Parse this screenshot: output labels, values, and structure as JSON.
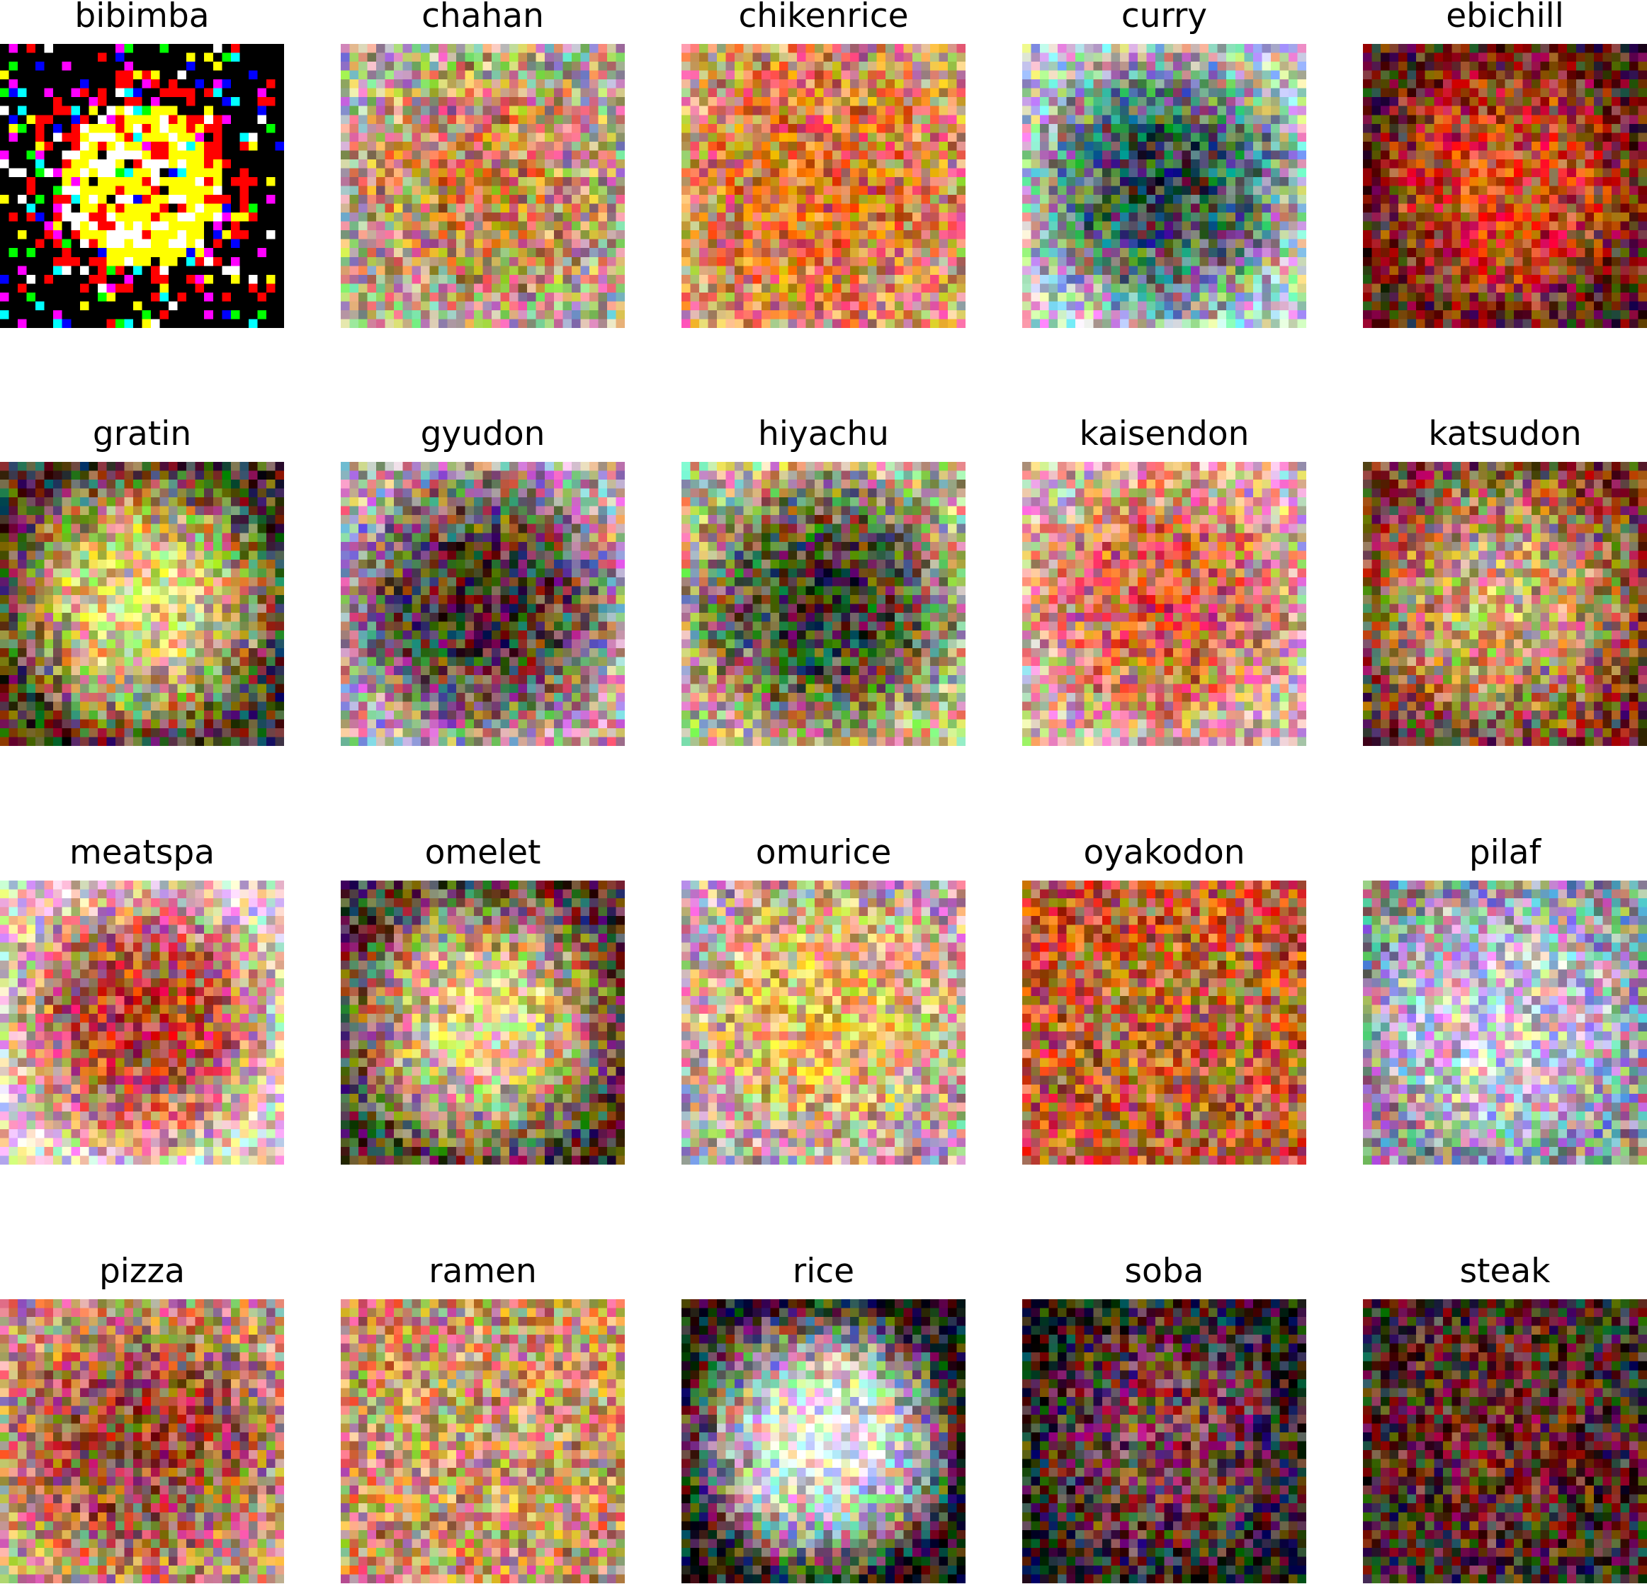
{
  "figure": {
    "columns": 5,
    "grid_resolution": 32,
    "panels": [
      {
        "label": "bibimba",
        "palette": "vivid",
        "tone": "bright-yellow-white center, red speckle, black background"
      },
      {
        "label": "chahan",
        "palette": "noisy",
        "tone": "mixed orange/green, pale ring, dark bottom edge"
      },
      {
        "label": "chikenrice",
        "palette": "noisy",
        "tone": "orange-red"
      },
      {
        "label": "curry",
        "palette": "noisy",
        "tone": "dark teal center, pale surround"
      },
      {
        "label": "ebichill",
        "palette": "noisy",
        "tone": "red-orange, dark edges"
      },
      {
        "label": "gratin",
        "palette": "noisy",
        "tone": "yellow-cream center, dark edges"
      },
      {
        "label": "gyudon",
        "palette": "noisy",
        "tone": "dark brown center, pale bottom"
      },
      {
        "label": "hiyachu",
        "palette": "noisy",
        "tone": "dark green/red center"
      },
      {
        "label": "kaisendon",
        "palette": "noisy",
        "tone": "orange-red center, pale edges"
      },
      {
        "label": "katsudon",
        "palette": "noisy",
        "tone": "brown ring, pale center"
      },
      {
        "label": "meatspa",
        "palette": "noisy",
        "tone": "red-brown center, pale edges"
      },
      {
        "label": "omelet",
        "palette": "noisy",
        "tone": "pale yellow center, dark corners"
      },
      {
        "label": "omurice",
        "palette": "noisy",
        "tone": "yellow-orange center"
      },
      {
        "label": "oyakodon",
        "palette": "noisy",
        "tone": "brown-orange ring"
      },
      {
        "label": "pilaf",
        "palette": "noisy",
        "tone": "pale lavender/teal"
      },
      {
        "label": "pizza",
        "palette": "noisy",
        "tone": "brown-red center"
      },
      {
        "label": "ramen",
        "palette": "noisy",
        "tone": "tan-orange"
      },
      {
        "label": "rice",
        "palette": "noisy",
        "tone": "white center, dark corners"
      },
      {
        "label": "soba",
        "palette": "noisy",
        "tone": "dark with pink speckle"
      },
      {
        "label": "steak",
        "palette": "noisy",
        "tone": "dark red-brown"
      }
    ]
  }
}
